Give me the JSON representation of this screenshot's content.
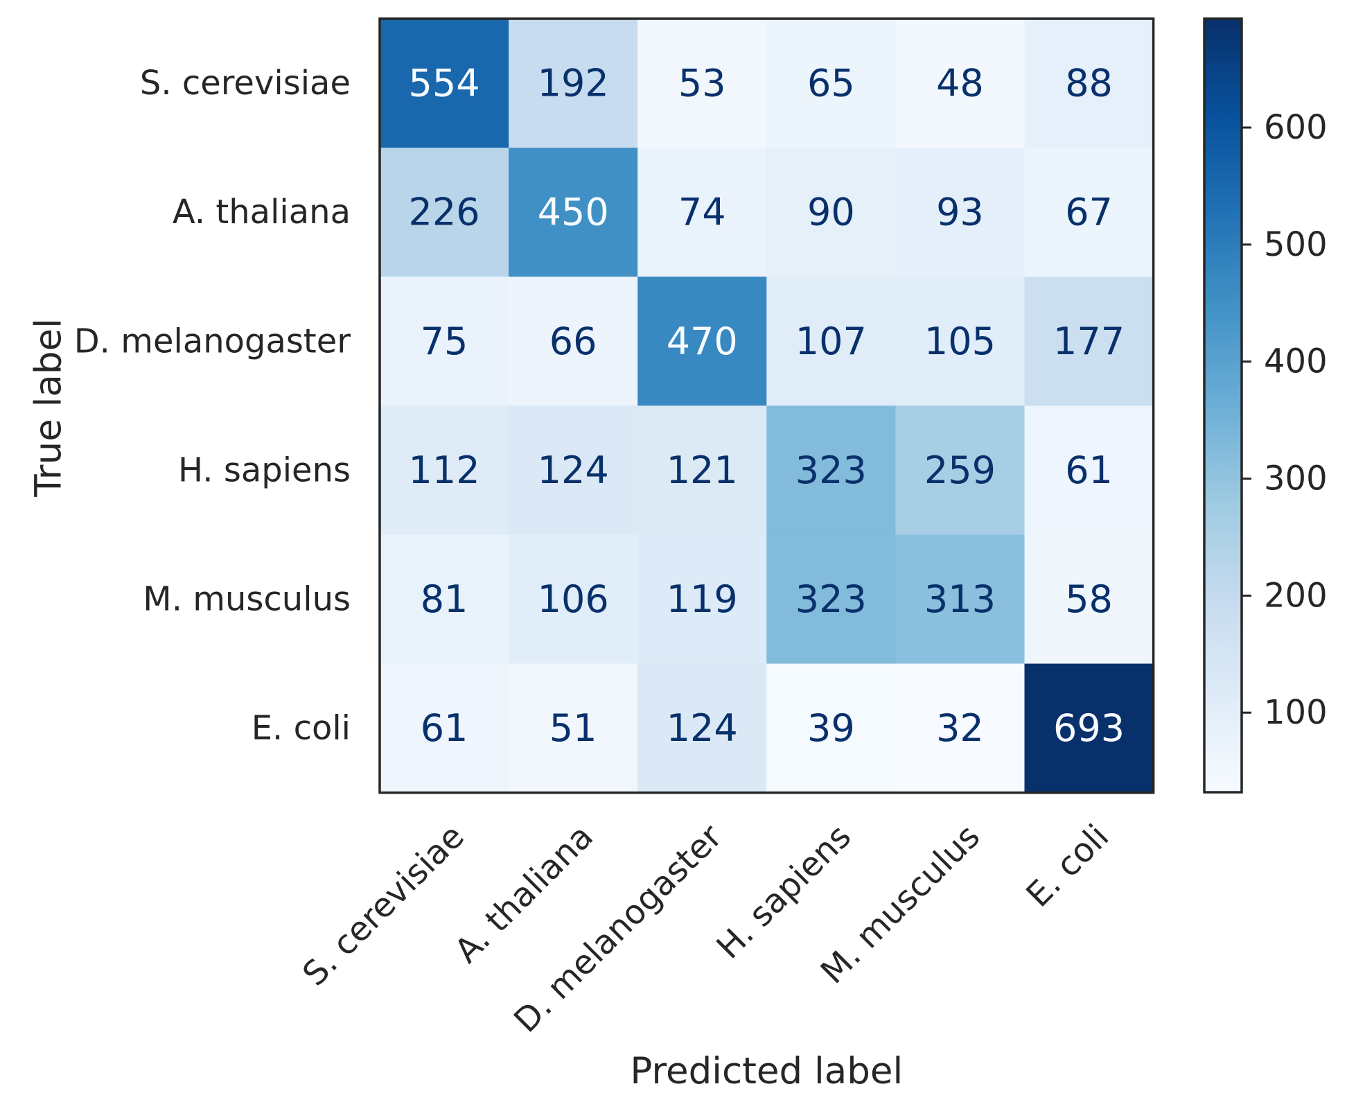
{
  "chart_data": {
    "type": "heatmap",
    "title": "",
    "xlabel": "Predicted label",
    "ylabel": "True label",
    "x_categories": [
      "S. cerevisiae",
      "A. thaliana",
      "D. melanogaster",
      "H. sapiens",
      "M. musculus",
      "E. coli"
    ],
    "y_categories": [
      "S. cerevisiae",
      "A. thaliana",
      "D. melanogaster",
      "H. sapiens",
      "M. musculus",
      "E. coli"
    ],
    "values": [
      [
        554,
        192,
        53,
        65,
        48,
        88
      ],
      [
        226,
        450,
        74,
        90,
        93,
        67
      ],
      [
        75,
        66,
        470,
        107,
        105,
        177
      ],
      [
        112,
        124,
        121,
        323,
        259,
        61
      ],
      [
        81,
        106,
        119,
        323,
        313,
        58
      ],
      [
        61,
        51,
        124,
        39,
        32,
        693
      ]
    ],
    "colormap": "Blues",
    "color_range": [
      32,
      693
    ],
    "colorbar_ticks": [
      100,
      200,
      300,
      400,
      500,
      600
    ],
    "grid": false,
    "legend": "colorbar-right"
  }
}
